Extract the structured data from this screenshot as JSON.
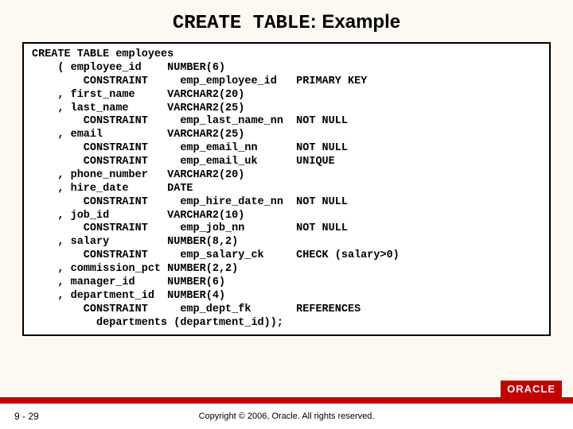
{
  "title_mono": "CREATE TABLE",
  "title_rest": ": Example",
  "code": "CREATE TABLE employees\n    ( employee_id    NUMBER(6)\n        CONSTRAINT     emp_employee_id   PRIMARY KEY\n    , first_name     VARCHAR2(20)\n    , last_name      VARCHAR2(25)\n        CONSTRAINT     emp_last_name_nn  NOT NULL\n    , email          VARCHAR2(25)\n        CONSTRAINT     emp_email_nn      NOT NULL\n        CONSTRAINT     emp_email_uk      UNIQUE\n    , phone_number   VARCHAR2(20)\n    , hire_date      DATE\n        CONSTRAINT     emp_hire_date_nn  NOT NULL\n    , job_id         VARCHAR2(10)\n        CONSTRAINT     emp_job_nn        NOT NULL\n    , salary         NUMBER(8,2)\n        CONSTRAINT     emp_salary_ck     CHECK (salary>0)\n    , commission_pct NUMBER(2,2)\n    , manager_id     NUMBER(6)\n    , department_id  NUMBER(4)\n        CONSTRAINT     emp_dept_fk       REFERENCES\n          departments (department_id));",
  "page_number": "9 - 29",
  "copyright": "Copyright © 2006, Oracle. All rights reserved.",
  "logo_text": "ORACLE",
  "colors": {
    "background": "#fdf8f0",
    "accent": "#c40000",
    "code_bg": "#ffffff",
    "border": "#000000"
  }
}
